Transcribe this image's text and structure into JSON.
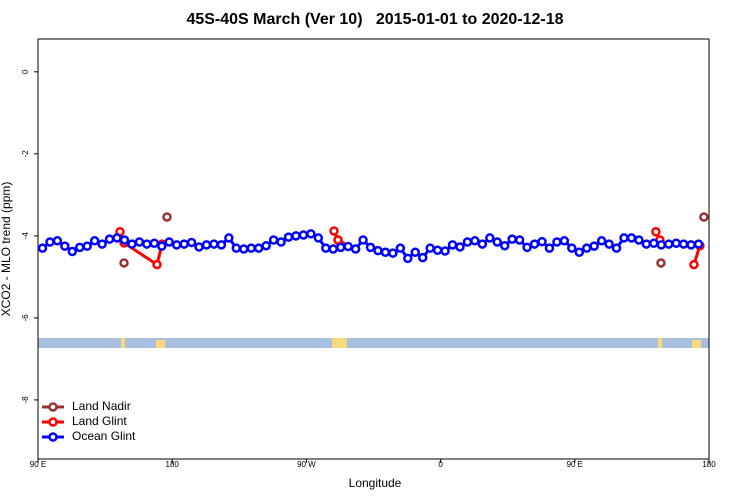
{
  "chart_data": {
    "type": "line",
    "title": "45S-40S March (Ver 10)   2015-01-01 to 2020-12-18",
    "x_label": "Longitude",
    "y_label": "XCO2 - MLO trend (ppm)",
    "xlim": [
      90,
      540
    ],
    "xticks": [
      {
        "value": 90,
        "label": "90 E"
      },
      {
        "value": 180,
        "label": "180"
      },
      {
        "value": 270,
        "label": "90 W"
      },
      {
        "value": 360,
        "label": "0"
      },
      {
        "value": 450,
        "label": "90 E"
      },
      {
        "value": 540,
        "label": "180"
      }
    ],
    "ylim": [
      -9.44,
      0.8
    ],
    "yticks": [
      0,
      -2,
      -4,
      -6,
      -8
    ],
    "legend": "bottom-left",
    "series": [
      {
        "name": "Land Nadir",
        "color": "#9b3030",
        "lines": false,
        "x": [
          147.7,
          176.5,
          291.2,
          507.8,
          536.6
        ],
        "values": [
          -4.66,
          -3.54,
          -4.1,
          -4.66,
          -3.54
        ]
      },
      {
        "name": "Land Glint",
        "color": "#ff0000",
        "lines": true,
        "x": [
          145,
          147.7,
          169.8,
          173.2,
          null,
          288.5,
          291.2,
          293.9,
          null,
          504.4,
          507.1,
          null,
          529.9,
          533.9
        ],
        "values": [
          -3.9,
          -4.17,
          -4.7,
          -4.2,
          null,
          -3.88,
          -4.1,
          -4.24,
          null,
          -3.9,
          -4.1,
          null,
          -4.7,
          -4.24
        ]
      },
      {
        "name": "Ocean Glint",
        "color": "#0000ff",
        "lines": true,
        "x": [
          93,
          98,
          103,
          108,
          113,
          118,
          123,
          128,
          133,
          138,
          143,
          148,
          153,
          158,
          163,
          168,
          173,
          178,
          183,
          188,
          193,
          198,
          203,
          208,
          213,
          218,
          223,
          228,
          233,
          238,
          243,
          248,
          253,
          258,
          263,
          268,
          273,
          278,
          283,
          288,
          293,
          298,
          303,
          308,
          313,
          318,
          323,
          328,
          333,
          338,
          343,
          348,
          353,
          358,
          363,
          368,
          373,
          378,
          383,
          388,
          393,
          398,
          403,
          408,
          413,
          418,
          423,
          428,
          433,
          438,
          443,
          448,
          453,
          458,
          463,
          468,
          473,
          478,
          483,
          488,
          493,
          498,
          503,
          508,
          513,
          518,
          523,
          528,
          533
        ],
        "values": [
          -4.3,
          -4.15,
          -4.12,
          -4.25,
          -4.38,
          -4.28,
          -4.25,
          -4.12,
          -4.2,
          -4.08,
          -4.05,
          -4.1,
          -4.2,
          -4.15,
          -4.2,
          -4.18,
          -4.25,
          -4.15,
          -4.22,
          -4.2,
          -4.16,
          -4.27,
          -4.22,
          -4.2,
          -4.22,
          -4.05,
          -4.3,
          -4.32,
          -4.3,
          -4.3,
          -4.24,
          -4.1,
          -4.15,
          -4.03,
          -4.0,
          -3.98,
          -3.95,
          -4.05,
          -4.3,
          -4.32,
          -4.28,
          -4.26,
          -4.32,
          -4.1,
          -4.28,
          -4.36,
          -4.4,
          -4.42,
          -4.3,
          -4.55,
          -4.4,
          -4.53,
          -4.3,
          -4.35,
          -4.37,
          -4.22,
          -4.27,
          -4.15,
          -4.12,
          -4.2,
          -4.05,
          -4.15,
          -4.24,
          -4.08,
          -4.1,
          -4.28,
          -4.2,
          -4.14,
          -4.3,
          -4.15,
          -4.12,
          -4.3,
          -4.4,
          -4.3,
          -4.25,
          -4.12,
          -4.2,
          -4.3,
          -4.05,
          -4.05,
          -4.1,
          -4.2,
          -4.18,
          -4.22,
          -4.2,
          -4.18,
          -4.2,
          -4.22,
          -4.2
        ]
      }
    ]
  }
}
